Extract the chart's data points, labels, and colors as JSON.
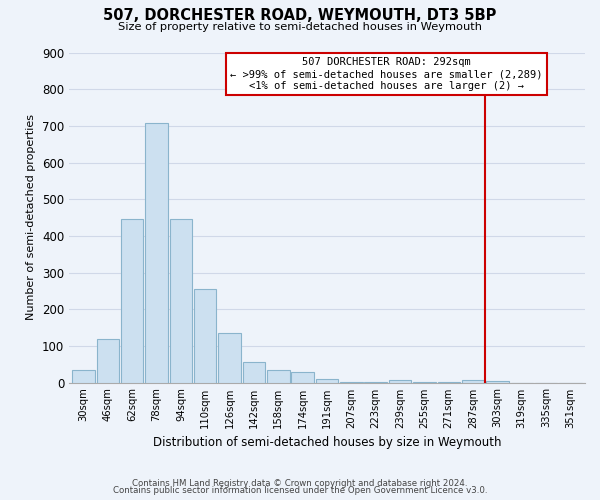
{
  "title": "507, DORCHESTER ROAD, WEYMOUTH, DT3 5BP",
  "subtitle": "Size of property relative to semi-detached houses in Weymouth",
  "xlabel": "Distribution of semi-detached houses by size in Weymouth",
  "ylabel": "Number of semi-detached properties",
  "footnote1": "Contains HM Land Registry data © Crown copyright and database right 2024.",
  "footnote2": "Contains public sector information licensed under the Open Government Licence v3.0.",
  "bar_labels": [
    "30sqm",
    "46sqm",
    "62sqm",
    "78sqm",
    "94sqm",
    "110sqm",
    "126sqm",
    "142sqm",
    "158sqm",
    "174sqm",
    "191sqm",
    "207sqm",
    "223sqm",
    "239sqm",
    "255sqm",
    "271sqm",
    "287sqm",
    "303sqm",
    "319sqm",
    "335sqm",
    "351sqm"
  ],
  "bar_values": [
    35,
    120,
    447,
    707,
    447,
    255,
    135,
    57,
    35,
    28,
    10,
    2,
    2,
    8,
    2,
    2,
    8,
    5,
    0,
    0,
    0
  ],
  "bar_color": "#cce0f0",
  "bar_edge_color": "#8ab4cc",
  "bg_color": "#eef3fa",
  "grid_color": "#d0d8e8",
  "vline_color": "#cc0000",
  "annotation_title": "507 DORCHESTER ROAD: 292sqm",
  "annotation_line1": "← >99% of semi-detached houses are smaller (2,289)",
  "annotation_line2": "<1% of semi-detached houses are larger (2) →",
  "annotation_box_color": "#cc0000",
  "ylim": [
    0,
    900
  ],
  "yticks": [
    0,
    100,
    200,
    300,
    400,
    500,
    600,
    700,
    800,
    900
  ]
}
